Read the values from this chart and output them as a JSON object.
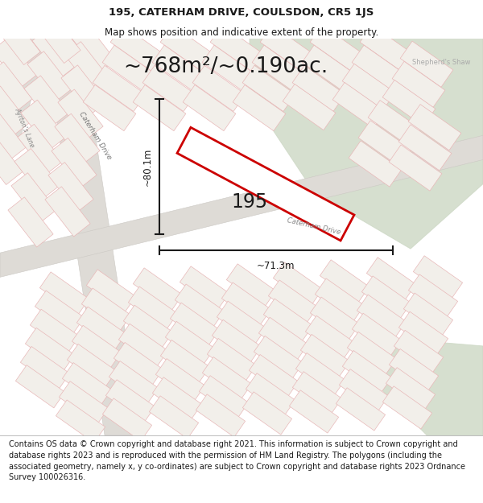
{
  "title_line1": "195, CATERHAM DRIVE, COULSDON, CR5 1JS",
  "title_line2": "Map shows position and indicative extent of the property.",
  "area_text": "~768m²/~0.190ac.",
  "label_195": "195",
  "dim_height": "~80.1m",
  "dim_width": "~71.3m",
  "shepherd_shaw": "Shepherd's Shaw",
  "caterham_drive_label1": "Caterham Drive",
  "caterham_drive_label2": "Caterham Drive",
  "ayrtons_lane": "Ayrton's Lane",
  "footer_text": "Contains OS data © Crown copyright and database right 2021. This information is subject to Crown copyright and database rights 2023 and is reproduced with the permission of HM Land Registry. The polygons (including the associated geometry, namely x, y co-ordinates) are subject to Crown copyright and database rights 2023 Ordnance Survey 100026316.",
  "map_bg": "#edeae5",
  "green_color": "#c9d5c0",
  "road_color": "#dedbd6",
  "parcel_fc": "#f2efea",
  "parcel_ec": "#e8b8b8",
  "plot_ec": "#cc0000",
  "plot_fc": "#ffffff",
  "dim_color": "#1a1a1a",
  "title_fontsize": 9.5,
  "subtitle_fontsize": 8.5,
  "area_fontsize": 19,
  "label_fontsize": 17,
  "footer_fontsize": 7.0
}
